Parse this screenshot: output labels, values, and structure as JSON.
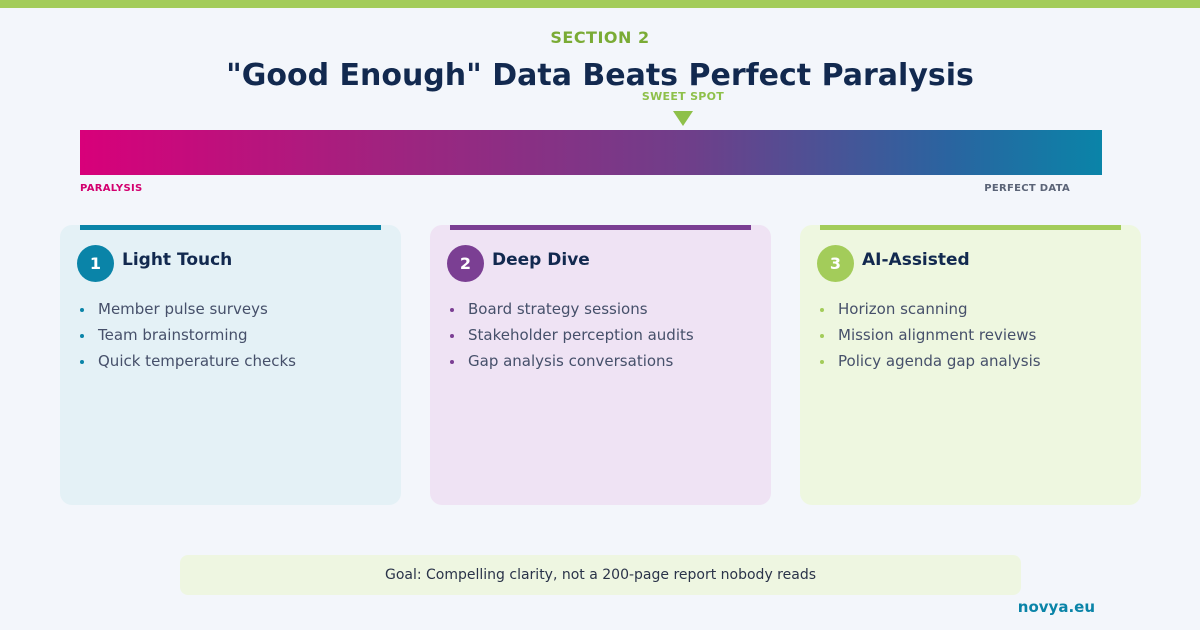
{
  "header": {
    "section_label": "SECTION 2",
    "title": "\"Good Enough\" Data Beats Perfect Paralysis"
  },
  "spectrum": {
    "sweet_spot_label": "SWEET SPOT",
    "left_label": "PARALYSIS",
    "right_label": "PERFECT DATA",
    "sweet_spot_position": 0.59,
    "colors": [
      "#d8007a",
      "#6e3f8a",
      "#0a84a8"
    ]
  },
  "cards": [
    {
      "number": "1",
      "title": "Light Touch",
      "color": "#0a84a8",
      "items": [
        "Member pulse surveys",
        "Team brainstorming",
        "Quick temperature checks"
      ]
    },
    {
      "number": "2",
      "title": "Deep Dive",
      "color": "#7b3f93",
      "items": [
        "Board strategy sessions",
        "Stakeholder perception audits",
        "Gap analysis conversations"
      ]
    },
    {
      "number": "3",
      "title": "AI-Assisted",
      "color": "#a3cc5a",
      "items": [
        "Horizon scanning",
        "Mission alignment reviews",
        "Policy agenda gap analysis"
      ]
    }
  ],
  "goal": "Goal: Compelling clarity, not a 200-page report nobody reads",
  "brand": "novya.eu"
}
